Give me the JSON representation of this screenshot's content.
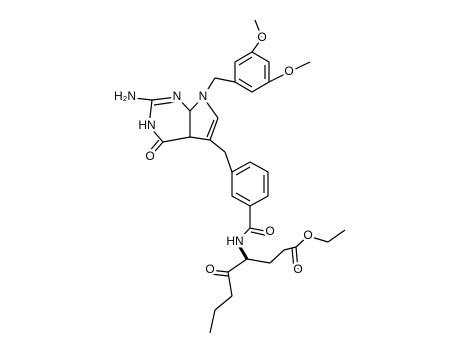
{
  "atoms": [
    "H₂N",
    "N",
    "N",
    "HN",
    "O",
    "O",
    "O",
    "HN",
    "O",
    "O",
    "O",
    "O"
  ]
}
